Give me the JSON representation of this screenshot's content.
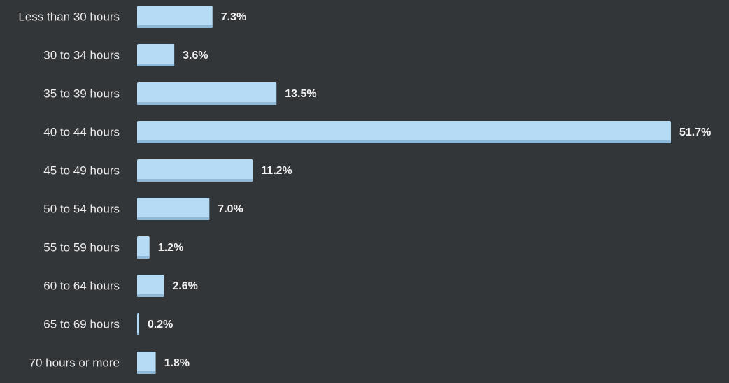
{
  "chart_data": {
    "type": "bar",
    "orientation": "horizontal",
    "color": "#b5dbf5",
    "categories": [
      "Less than 30 hours",
      "30 to 34 hours",
      "35 to 39 hours",
      "40 to 44 hours",
      "45 to 49 hours",
      "50 to 54 hours",
      "55 to 59 hours",
      "60 to 64 hours",
      "65 to 69 hours",
      "70 hours or more"
    ],
    "values": [
      7.3,
      3.6,
      13.5,
      51.7,
      11.2,
      7.0,
      1.2,
      2.6,
      0.2,
      1.8
    ],
    "value_labels": [
      "7.3%",
      "3.6%",
      "13.5%",
      "51.7%",
      "11.2%",
      "7.0%",
      "1.2%",
      "2.6%",
      "0.2%",
      "1.8%"
    ]
  }
}
